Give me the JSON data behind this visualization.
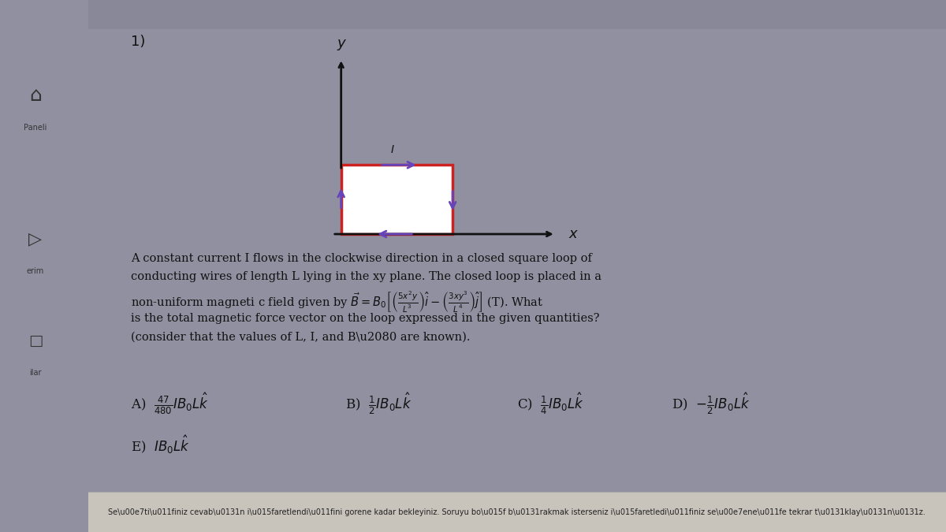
{
  "outer_bg": "#9090a0",
  "sidebar_bg": "#b0b0c0",
  "content_bg": "#e8e6e0",
  "title_number": "1)",
  "problem_line1": "A constant current I flows in the clockwise direction in a closed square loop of",
  "problem_line2": "conducting wires of length L lying in the xy plane. The closed loop is placed in a",
  "problem_line3": "non-uniform magneti c field given by $\\vec{B} = B_0\\left[\\left(\\frac{5x^2y}{L^3}\\right)\\hat{i} - \\left(\\frac{3xy^3}{L^4}\\right)\\hat{j}\\right]$ (T). What",
  "problem_line4": "is the total magnetic force vector on the loop expressed in the given quantities?",
  "problem_line5": "(consider that the values of L, I, and B\\u2080 are known).",
  "footer_text": "Se\\u00e7ti\\u011finiz cevab\\u0131n i\\u015faretlendi\\u011fini gorene kadar bekleyiniz. Soruyu bo\\u015f b\\u0131rakmak isterseniz i\\u015faretledi\\u011finiz se\\u00e7ene\\u011fe tekrar t\\u0131klay\\u0131n\\u0131z.",
  "sidebar_labels": [
    "Paneli",
    "erim",
    "ilar"
  ],
  "loop_color": "#cc2222",
  "axis_color": "#111111",
  "current_arrow_color": "#6644bb",
  "text_color": "#111111",
  "answer_A": "A)  $\\frac{47}{480}IB_0L\\hat{k}$",
  "answer_B": "B)  $\\frac{1}{2}IB_0L\\hat{k}$",
  "answer_C": "C)  $\\frac{1}{4}IB_0L\\hat{k}$",
  "answer_D": "D)  $-\\frac{1}{2}IB_0L\\hat{k}$",
  "answer_E": "E)  $IB_0L\\hat{k}$"
}
